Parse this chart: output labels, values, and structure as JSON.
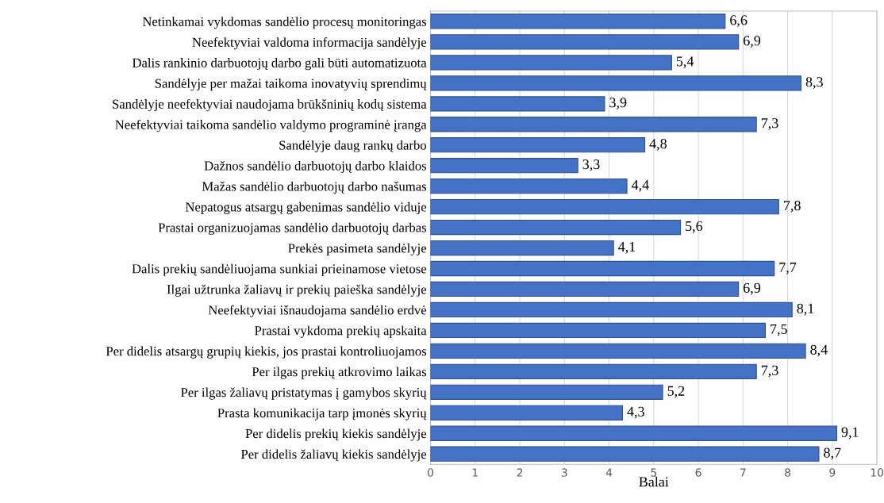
{
  "chart_data": {
    "type": "bar",
    "orientation": "horizontal",
    "categories": [
      "Netinkamai vykdomas sandėlio procesų monitoringas",
      "Neefektyviai valdoma informacija sandėlyje",
      "Dalis rankinio darbuotojų darbo gali būti automatizuota",
      "Sandėlyje per mažai taikoma inovatyvių sprendimų",
      "Sandėlyje neefektyviai naudojama brūkšninių kodų sistema",
      "Neefektyviai taikoma sandėlio valdymo programinė įranga",
      "Sandėlyje daug rankų darbo",
      "Dažnos sandėlio darbuotojų darbo klaidos",
      "Mažas sandėlio darbuotojų darbo našumas",
      "Nepatogus atsargų gabenimas sandėlio viduje",
      "Prastai organizuojamas sandėlio darbuotojų darbas",
      "Prekės pasimeta sandėlyje",
      "Dalis prekių sandėliuojama sunkiai prieinamose vietose",
      "Ilgai užtrunka žaliavų ir prekių paieška sandėlyje",
      "Neefektyviai išnaudojama sandėlio erdvė",
      "Prastai vykdoma prekių apskaita",
      "Per didelis atsargų grupių kiekis, jos prastai kontroliuojamos",
      "Per ilgas prekių atkrovimo laikas",
      "Per ilgas žaliavų pristatymas į gamybos skyrių",
      "Prasta komunikacija tarp įmonės skyrių",
      "Per didelis prekių kiekis sandėlyje",
      "Per didelis žaliavų kiekis sandėlyje"
    ],
    "values": [
      6.6,
      6.9,
      5.4,
      8.3,
      3.9,
      7.3,
      4.8,
      3.3,
      4.4,
      7.8,
      5.6,
      4.1,
      7.7,
      6.9,
      8.1,
      7.5,
      8.4,
      7.3,
      5.2,
      4.3,
      9.1,
      8.7
    ],
    "value_labels": [
      "6,6",
      "6,9",
      "5,4",
      "8,3",
      "3,9",
      "7,3",
      "4,8",
      "3,3",
      "4,4",
      "7,8",
      "5,6",
      "4,1",
      "7,7",
      "6,9",
      "8,1",
      "7,5",
      "8,4",
      "7,3",
      "5,2",
      "4,3",
      "9,1",
      "8,7"
    ],
    "color": "#4472c4",
    "xlabel": "Balai",
    "xlim": [
      0,
      10
    ],
    "xticks": [
      0,
      1,
      2,
      3,
      4,
      5,
      6,
      7,
      8,
      9,
      10
    ],
    "grid": "x"
  }
}
